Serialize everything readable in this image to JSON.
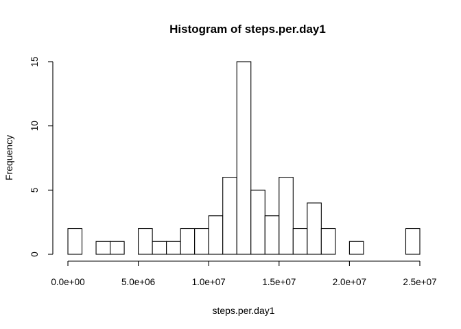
{
  "chart_data": {
    "type": "bar",
    "title": "Histogram of steps.per.day1",
    "xlabel": "steps.per.day1",
    "ylabel": "Frequency",
    "bin_width": 1000000,
    "xlim": [
      0,
      25000000
    ],
    "ylim": [
      0,
      15
    ],
    "x_ticks": [
      0,
      5000000,
      10000000,
      15000000,
      20000000,
      25000000
    ],
    "x_tick_labels": [
      "0.0e+00",
      "5.0e+06",
      "1.0e+07",
      "1.5e+07",
      "2.0e+07",
      "2.5e+07"
    ],
    "y_ticks": [
      0,
      5,
      10,
      15
    ],
    "y_tick_labels": [
      "0",
      "5",
      "10",
      "15"
    ],
    "bins": [
      {
        "start": 0,
        "end": 1000000,
        "count": 2
      },
      {
        "start": 1000000,
        "end": 2000000,
        "count": 0
      },
      {
        "start": 2000000,
        "end": 3000000,
        "count": 1
      },
      {
        "start": 3000000,
        "end": 4000000,
        "count": 1
      },
      {
        "start": 4000000,
        "end": 5000000,
        "count": 0
      },
      {
        "start": 5000000,
        "end": 6000000,
        "count": 2
      },
      {
        "start": 6000000,
        "end": 7000000,
        "count": 1
      },
      {
        "start": 7000000,
        "end": 8000000,
        "count": 1
      },
      {
        "start": 8000000,
        "end": 9000000,
        "count": 2
      },
      {
        "start": 9000000,
        "end": 10000000,
        "count": 2
      },
      {
        "start": 10000000,
        "end": 11000000,
        "count": 3
      },
      {
        "start": 11000000,
        "end": 12000000,
        "count": 6
      },
      {
        "start": 12000000,
        "end": 13000000,
        "count": 15
      },
      {
        "start": 13000000,
        "end": 14000000,
        "count": 5
      },
      {
        "start": 14000000,
        "end": 15000000,
        "count": 3
      },
      {
        "start": 15000000,
        "end": 16000000,
        "count": 6
      },
      {
        "start": 16000000,
        "end": 17000000,
        "count": 2
      },
      {
        "start": 17000000,
        "end": 18000000,
        "count": 4
      },
      {
        "start": 18000000,
        "end": 19000000,
        "count": 2
      },
      {
        "start": 19000000,
        "end": 20000000,
        "count": 0
      },
      {
        "start": 20000000,
        "end": 21000000,
        "count": 1
      },
      {
        "start": 21000000,
        "end": 22000000,
        "count": 0
      },
      {
        "start": 22000000,
        "end": 23000000,
        "count": 0
      },
      {
        "start": 23000000,
        "end": 24000000,
        "count": 0
      },
      {
        "start": 24000000,
        "end": 25000000,
        "count": 2
      }
    ],
    "grid": false,
    "colors": {
      "bar_fill": "#ffffff",
      "bar_stroke": "#000000",
      "background": "#ffffff"
    }
  }
}
